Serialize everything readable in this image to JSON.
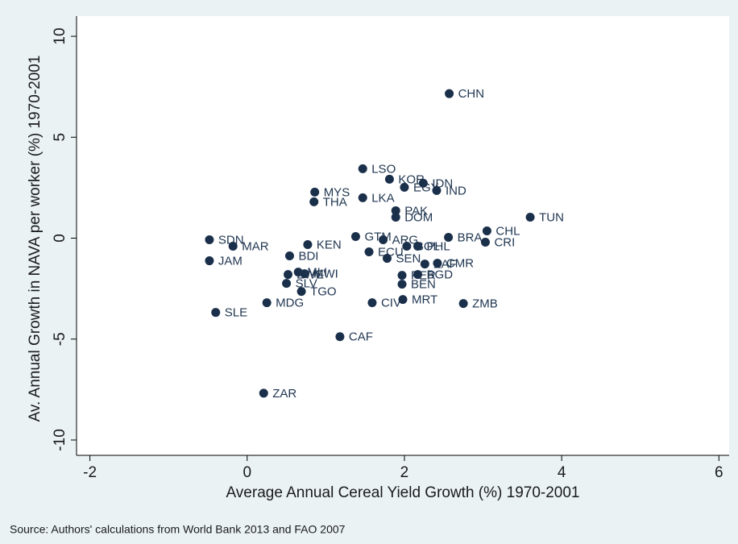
{
  "chart_data": {
    "type": "scatter",
    "x_label": "Average Annual Cereal Yield Growth (%) 1970-2001",
    "y_label": "Av. Annual Growth in NAVA per worker (%) 1970-2001",
    "note": "Source: Authors' calculations from World Bank 2013 and FAO 2007",
    "color": "#1a2f4a",
    "xlim": [
      -2.17,
      6.13
    ],
    "ylim": [
      -10.76,
      11.0
    ],
    "xticks": [
      -2,
      0,
      2,
      4,
      6
    ],
    "yticks": [
      -10,
      -5,
      0,
      5,
      10
    ],
    "labels": [
      "CHN",
      "LSO",
      "KOR",
      "IDN",
      "EGY",
      "IND",
      "MYS",
      "LKA",
      "THA",
      "PAK",
      "DOM",
      "TUN",
      "CHL",
      "BRA",
      "CRI",
      "GTM",
      "ARG",
      "SDN",
      "MAR",
      "KEN",
      "ECU",
      "PHL",
      "BOL",
      "SEN",
      "ZAF",
      "CMR",
      "BDI",
      "JAM",
      "MLI",
      "MWI",
      "ZWE",
      "SLV",
      "PER",
      "BGD",
      "BEN",
      "TGO",
      "MDG",
      "CIV",
      "MRT",
      "ZMB",
      "SLE",
      "CAF",
      "ZAR"
    ],
    "x": [
      2.57,
      1.47,
      1.81,
      2.24,
      2.0,
      2.41,
      0.86,
      1.47,
      0.85,
      1.89,
      1.89,
      3.6,
      3.05,
      2.56,
      3.03,
      1.38,
      1.73,
      -0.48,
      -0.18,
      0.77,
      1.55,
      2.17,
      2.03,
      1.78,
      2.26,
      2.42,
      0.54,
      -0.48,
      0.65,
      0.73,
      0.52,
      0.5,
      1.97,
      2.17,
      1.97,
      0.69,
      0.25,
      1.59,
      1.98,
      2.75,
      -0.4,
      1.18,
      0.21
    ],
    "values": [
      7.16,
      3.44,
      2.92,
      2.72,
      2.52,
      2.36,
      2.28,
      2.0,
      1.8,
      1.36,
      1.04,
      1.04,
      0.36,
      0.04,
      -0.2,
      0.08,
      -0.08,
      -0.08,
      -0.4,
      -0.32,
      -0.68,
      -0.4,
      -0.4,
      -1.0,
      -1.28,
      -1.24,
      -0.88,
      -1.12,
      -1.68,
      -1.76,
      -1.8,
      -2.24,
      -1.84,
      -1.8,
      -2.28,
      -2.64,
      -3.2,
      -3.2,
      -3.04,
      -3.24,
      -3.68,
      -4.88,
      -7.68
    ]
  }
}
